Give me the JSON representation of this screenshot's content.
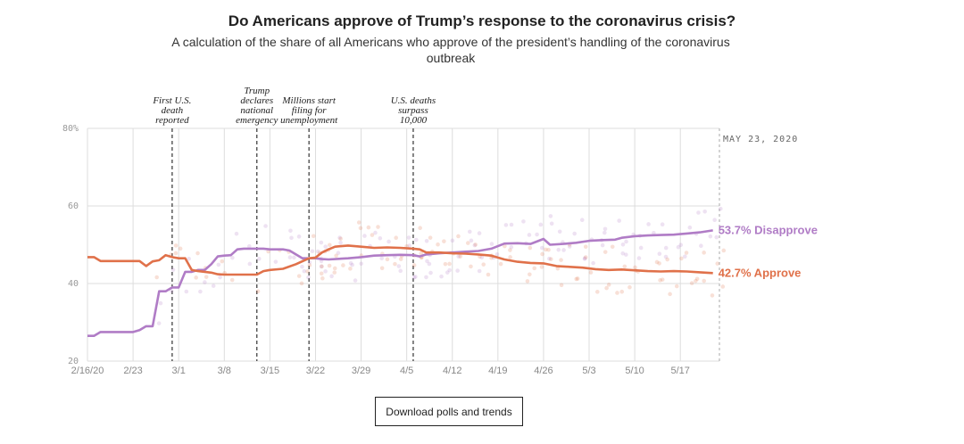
{
  "chart_data": {
    "type": "line",
    "title": "Do Americans approve of Trump’s response to the coronavirus crisis?",
    "subtitle": "A calculation of the share of all Americans who approve of the president’s handling of the coronavirus outbreak",
    "ylim": [
      20,
      80
    ],
    "yticks": [
      "80%",
      "60",
      "40",
      "20"
    ],
    "ytick_values": [
      80,
      60,
      40,
      20
    ],
    "xticks": [
      "2/16/20",
      "2/23",
      "3/1",
      "3/8",
      "3/15",
      "3/22",
      "3/29",
      "4/5",
      "4/12",
      "4/19",
      "4/26",
      "5/3",
      "5/10",
      "5/17"
    ],
    "x_range_days": [
      0,
      97
    ],
    "date_stamp": "MAY 23, 2020",
    "annotations": [
      {
        "day": 13,
        "lines": [
          "First U.S.",
          "death",
          "reported"
        ]
      },
      {
        "day": 26,
        "lines": [
          "Trump",
          "declares",
          "national",
          "emergency"
        ]
      },
      {
        "day": 34,
        "lines": [
          "Millions start",
          "filing for",
          "unemployment"
        ]
      },
      {
        "day": 50,
        "lines": [
          "U.S. deaths",
          "surpass",
          "10,000"
        ]
      }
    ],
    "series": [
      {
        "name": "Disapprove",
        "end_label": "53.7% Disapprove",
        "color": "#b07cc6",
        "points": [
          [
            0,
            26.5
          ],
          [
            1,
            26.5
          ],
          [
            2,
            27.5
          ],
          [
            7,
            27.5
          ],
          [
            8,
            28
          ],
          [
            9,
            29
          ],
          [
            10,
            29
          ],
          [
            11,
            38
          ],
          [
            12,
            38
          ],
          [
            13,
            39
          ],
          [
            14,
            39
          ],
          [
            15,
            43
          ],
          [
            16,
            43
          ],
          [
            17,
            43.5
          ],
          [
            18,
            43.5
          ],
          [
            19,
            45
          ],
          [
            20,
            47
          ],
          [
            21,
            47.2
          ],
          [
            22,
            47.3
          ],
          [
            23,
            48.8
          ],
          [
            24,
            49
          ],
          [
            25,
            49
          ],
          [
            27,
            49
          ],
          [
            28,
            48.8
          ],
          [
            30,
            48.8
          ],
          [
            31,
            48.5
          ],
          [
            32,
            47.5
          ],
          [
            33,
            46.5
          ],
          [
            34,
            46.5
          ],
          [
            35,
            46.5
          ],
          [
            36,
            46.3
          ],
          [
            37,
            46.2
          ],
          [
            40,
            46.5
          ],
          [
            42,
            46.8
          ],
          [
            44,
            47.2
          ],
          [
            46,
            47.3
          ],
          [
            48,
            47.4
          ],
          [
            50,
            47.3
          ],
          [
            51,
            47
          ],
          [
            52,
            47.5
          ],
          [
            54,
            47.8
          ],
          [
            56,
            48
          ],
          [
            58,
            48.2
          ],
          [
            60,
            48.4
          ],
          [
            62,
            49
          ],
          [
            64,
            50.3
          ],
          [
            66,
            50.4
          ],
          [
            68,
            50.2
          ],
          [
            70,
            51.5
          ],
          [
            71,
            50
          ],
          [
            73,
            50.2
          ],
          [
            75,
            50.5
          ],
          [
            77,
            51
          ],
          [
            79,
            51.2
          ],
          [
            81,
            51.3
          ],
          [
            82,
            51.8
          ],
          [
            84,
            52.2
          ],
          [
            86,
            52.4
          ],
          [
            88,
            52.5
          ],
          [
            90,
            52.6
          ],
          [
            92,
            52.9
          ],
          [
            94,
            53.2
          ],
          [
            96,
            53.7
          ]
        ]
      },
      {
        "name": "Approve",
        "end_label": "42.7% Approve",
        "color": "#e0714a",
        "points": [
          [
            0,
            46.8
          ],
          [
            1,
            46.8
          ],
          [
            2,
            45.8
          ],
          [
            8,
            45.8
          ],
          [
            9,
            44.5
          ],
          [
            10,
            45.7
          ],
          [
            11,
            46
          ],
          [
            12,
            47.3
          ],
          [
            13,
            46.8
          ],
          [
            14,
            46.5
          ],
          [
            15,
            46.5
          ],
          [
            16,
            43.5
          ],
          [
            17,
            43.2
          ],
          [
            18,
            43
          ],
          [
            19,
            42.8
          ],
          [
            20,
            42.4
          ],
          [
            21,
            42.3
          ],
          [
            26,
            42.3
          ],
          [
            27,
            43.2
          ],
          [
            28,
            43.5
          ],
          [
            30,
            43.8
          ],
          [
            32,
            45
          ],
          [
            34,
            46.5
          ],
          [
            35,
            46.7
          ],
          [
            36,
            48
          ],
          [
            37,
            48.8
          ],
          [
            38,
            49.5
          ],
          [
            40,
            49.8
          ],
          [
            42,
            49.5
          ],
          [
            44,
            49.2
          ],
          [
            46,
            49.3
          ],
          [
            48,
            49.2
          ],
          [
            50,
            49
          ],
          [
            51,
            48.8
          ],
          [
            52,
            48
          ],
          [
            54,
            48
          ],
          [
            56,
            47.8
          ],
          [
            58,
            47.7
          ],
          [
            60,
            47.5
          ],
          [
            62,
            47.2
          ],
          [
            64,
            46.2
          ],
          [
            66,
            45.6
          ],
          [
            68,
            45.3
          ],
          [
            70,
            45.2
          ],
          [
            72,
            44.5
          ],
          [
            74,
            44.3
          ],
          [
            76,
            44.1
          ],
          [
            78,
            43.7
          ],
          [
            80,
            43.5
          ],
          [
            82,
            43.6
          ],
          [
            84,
            43.4
          ],
          [
            86,
            43.2
          ],
          [
            88,
            43.1
          ],
          [
            90,
            43.2
          ],
          [
            92,
            43.1
          ],
          [
            94,
            42.9
          ],
          [
            96,
            42.7
          ]
        ]
      }
    ]
  },
  "download_button": {
    "label": "Download polls and trends"
  }
}
